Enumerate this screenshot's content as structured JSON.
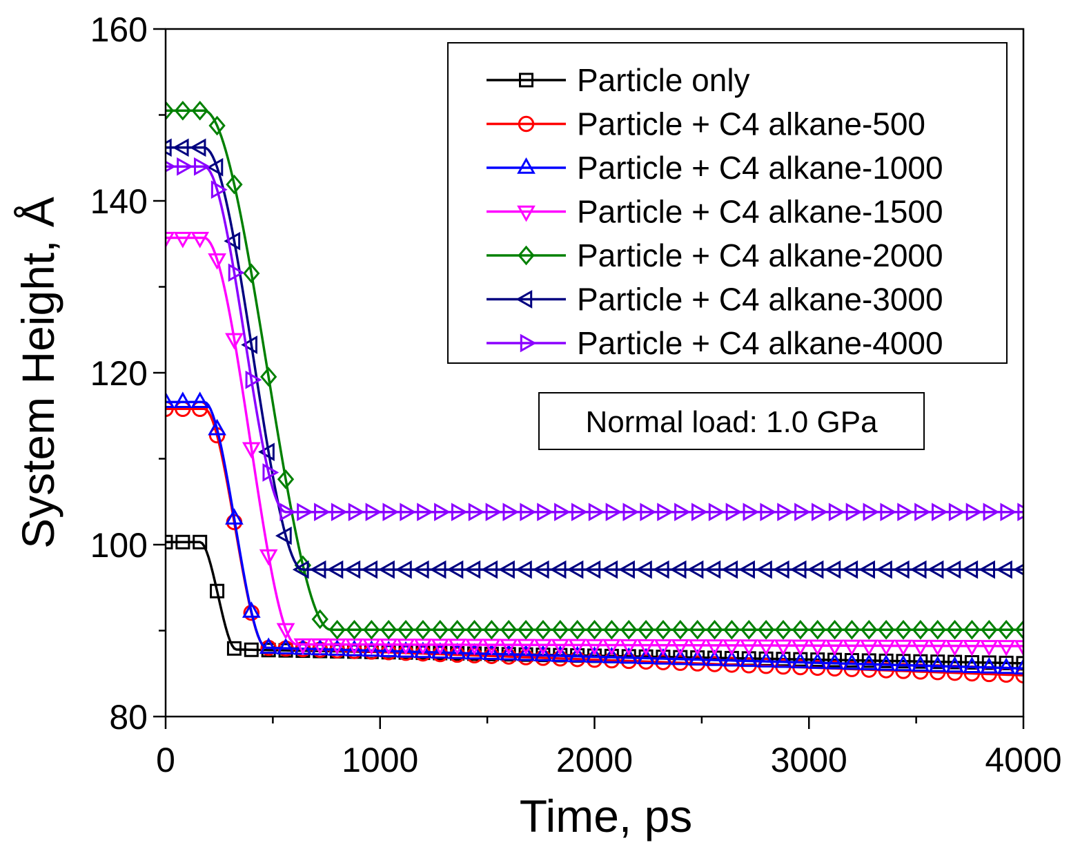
{
  "chart_data": {
    "type": "line",
    "title": "",
    "xlabel": "Time, ps",
    "ylabel": "System Height, Å",
    "xlim": [
      0,
      4000
    ],
    "ylim": [
      80,
      160
    ],
    "xticks": [
      0,
      1000,
      2000,
      3000,
      4000
    ],
    "yticks": [
      80,
      100,
      120,
      140,
      160
    ],
    "x_minor_step": 500,
    "y_minor_step": 10,
    "grid": false,
    "legend_position": "top-right",
    "annotation": "Normal load: 1.0 GPa",
    "series": [
      {
        "name": "Particle only",
        "color": "#000000",
        "marker": "square",
        "pre": 100.3,
        "plateau_end": 160,
        "ramp_end": 330,
        "final_start": 87.8,
        "final_end": 86.2
      },
      {
        "name": "Particle + C4 alkane-500",
        "color": "#ff0000",
        "marker": "circle",
        "pre": 115.8,
        "plateau_end": 180,
        "ramp_end": 470,
        "final_start": 88.0,
        "final_end": 84.8
      },
      {
        "name": "Particle + C4 alkane-1000",
        "color": "#0000ff",
        "marker": "triangle-up",
        "pre": 116.6,
        "plateau_end": 180,
        "ramp_end": 470,
        "final_start": 88.0,
        "final_end": 85.6
      },
      {
        "name": "Particle + C4 alkane-1500",
        "color": "#ff00ff",
        "marker": "triangle-down",
        "pre": 135.7,
        "plateau_end": 180,
        "ramp_end": 610,
        "final_start": 88.4,
        "final_end": 88.2
      },
      {
        "name": "Particle + C4 alkane-2000",
        "color": "#008000",
        "marker": "diamond",
        "pre": 150.5,
        "plateau_end": 180,
        "ramp_end": 770,
        "final_start": 90.1,
        "final_end": 90.1
      },
      {
        "name": "Particle + C4 alkane-3000",
        "color": "#000080",
        "marker": "triangle-left",
        "pre": 146.2,
        "plateau_end": 180,
        "ramp_end": 640,
        "final_start": 97.1,
        "final_end": 97.1
      },
      {
        "name": "Particle + C4 alkane-4000",
        "color": "#8b00ff",
        "marker": "triangle-right",
        "pre": 144.0,
        "plateau_end": 180,
        "ramp_end": 560,
        "final_start": 103.8,
        "final_end": 103.8
      }
    ]
  }
}
